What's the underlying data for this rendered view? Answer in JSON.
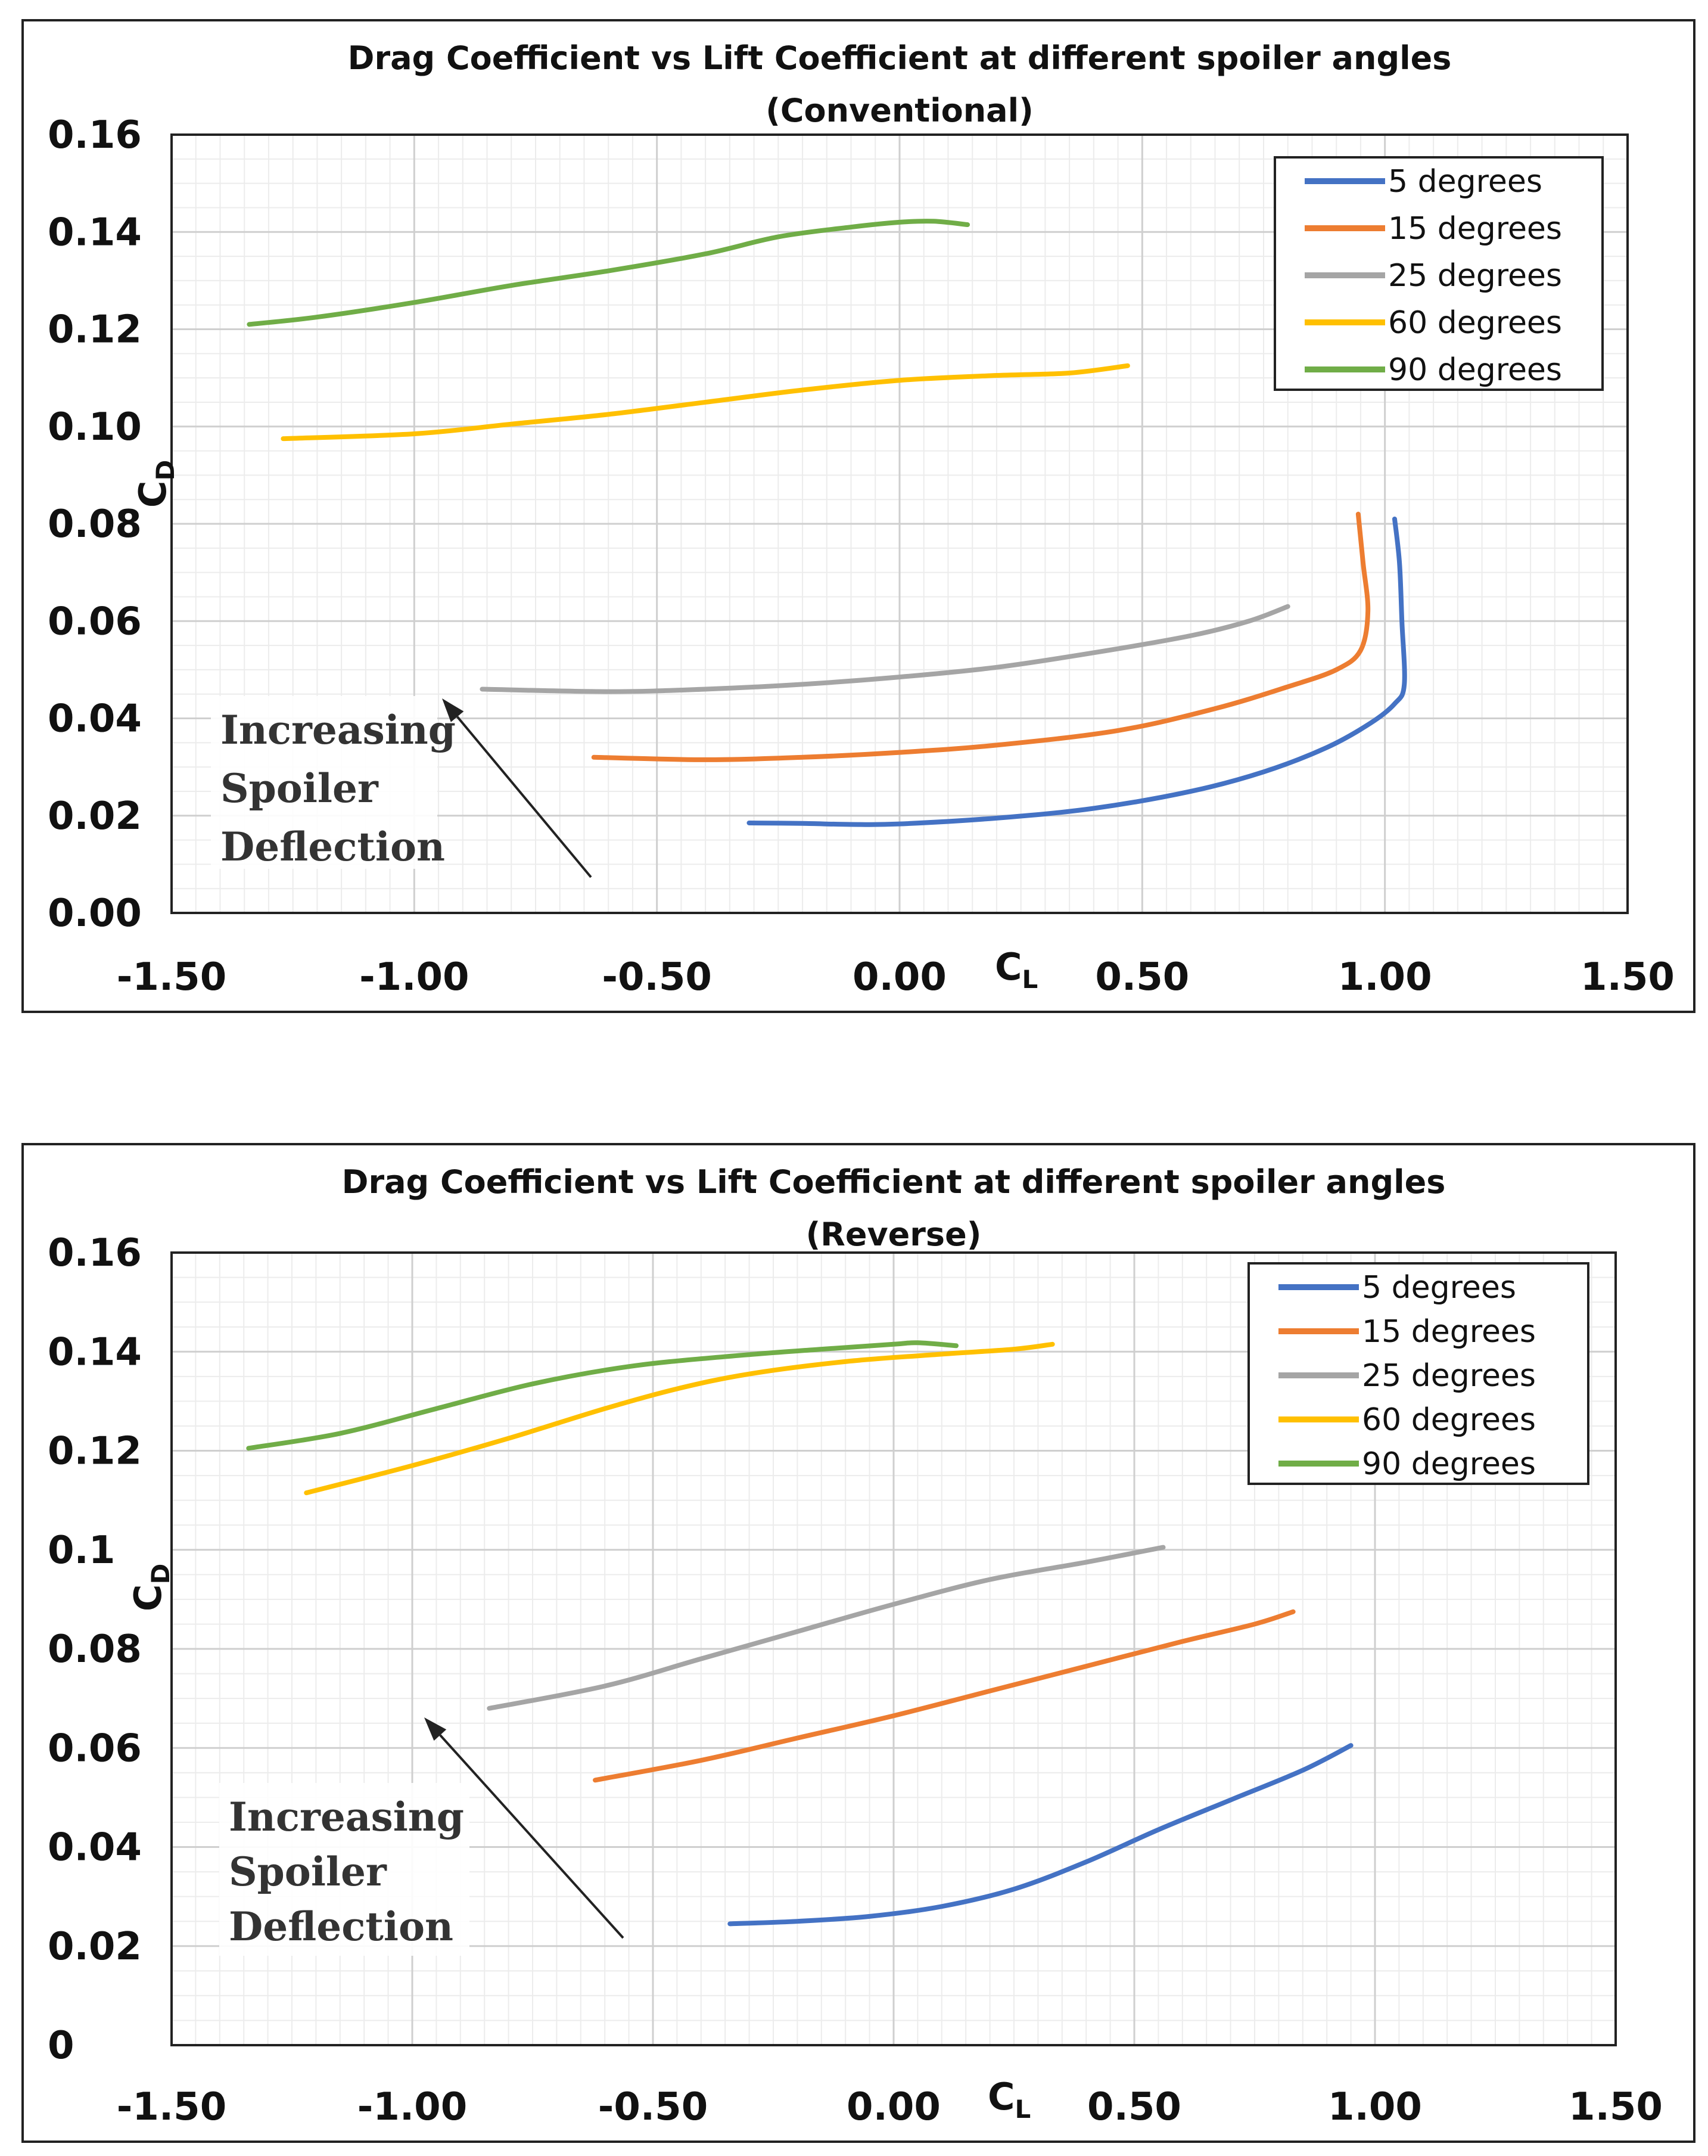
{
  "chart_data": [
    {
      "type": "line",
      "title": "Drag Coefficient vs Lift Coefficient at different spoiler angles",
      "subtitle": "(Conventional)",
      "xlabel": "C",
      "xlabel_sub": "L",
      "ylabel": "C",
      "ylabel_sub": "D",
      "xlim": [
        -1.5,
        1.5
      ],
      "ylim": [
        0,
        0.16
      ],
      "xticks": [
        "-1.50",
        "-1.00",
        "-0.50",
        "0.00",
        "0.50",
        "1.00",
        "1.50"
      ],
      "yticks": [
        "0.00",
        "0.02",
        "0.04",
        "0.06",
        "0.08",
        "0.10",
        "0.12",
        "0.14",
        "0.16"
      ],
      "grid": true,
      "legend_position": "top-right",
      "annotation": [
        "Increasing",
        "Spoiler",
        "Deflection"
      ],
      "series": [
        {
          "name": "5 degrees",
          "color": "#4472C4",
          "x": [
            -0.31,
            -0.2,
            -0.1,
            0.0,
            0.2,
            0.4,
            0.6,
            0.75,
            0.88,
            0.97,
            1.02,
            1.04,
            1.035,
            1.03,
            1.02
          ],
          "y": [
            0.0185,
            0.0184,
            0.0182,
            0.0183,
            0.0195,
            0.0215,
            0.025,
            0.029,
            0.034,
            0.039,
            0.043,
            0.047,
            0.06,
            0.072,
            0.081
          ]
        },
        {
          "name": "15 degrees",
          "color": "#ED7D31",
          "x": [
            -0.63,
            -0.4,
            -0.2,
            0.0,
            0.2,
            0.45,
            0.65,
            0.8,
            0.9,
            0.95,
            0.965,
            0.955,
            0.945
          ],
          "y": [
            0.032,
            0.0315,
            0.032,
            0.033,
            0.0345,
            0.0375,
            0.042,
            0.0465,
            0.05,
            0.054,
            0.062,
            0.072,
            0.082
          ]
        },
        {
          "name": "25 degrees",
          "color": "#A5A5A5",
          "x": [
            -0.86,
            -0.6,
            -0.4,
            -0.2,
            0.0,
            0.2,
            0.4,
            0.6,
            0.72,
            0.8
          ],
          "y": [
            0.046,
            0.0455,
            0.046,
            0.047,
            0.0485,
            0.0505,
            0.0535,
            0.057,
            0.06,
            0.063
          ]
        },
        {
          "name": "60 degrees",
          "color": "#FFC000",
          "x": [
            -1.27,
            -1.0,
            -0.8,
            -0.6,
            -0.4,
            -0.2,
            0.0,
            0.2,
            0.35,
            0.47
          ],
          "y": [
            0.0975,
            0.0985,
            0.1005,
            0.1025,
            0.105,
            0.1075,
            0.1095,
            0.1105,
            0.111,
            0.1125
          ]
        },
        {
          "name": "90 degrees",
          "color": "#70AD47",
          "x": [
            -1.34,
            -1.2,
            -1.0,
            -0.8,
            -0.6,
            -0.4,
            -0.25,
            -0.1,
            0.0,
            0.07,
            0.14
          ],
          "y": [
            0.121,
            0.1225,
            0.1255,
            0.129,
            0.132,
            0.1355,
            0.139,
            0.141,
            0.142,
            0.1422,
            0.1415
          ]
        }
      ]
    },
    {
      "type": "line",
      "title": "Drag Coefficient vs Lift Coefficient at different spoiler angles",
      "subtitle": "(Reverse)",
      "xlabel": "C",
      "xlabel_sub": "L",
      "ylabel": "C",
      "ylabel_sub": "D",
      "xlim": [
        -1.5,
        1.5
      ],
      "ylim": [
        0,
        0.16
      ],
      "xticks": [
        "-1.50",
        "-1.00",
        "-0.50",
        "0.00",
        "0.50",
        "1.00",
        "1.50"
      ],
      "yticks": [
        "0",
        "0.02",
        "0.04",
        "0.06",
        "0.08",
        "0.1",
        "0.12",
        "0.14",
        "0.16"
      ],
      "grid": true,
      "legend_position": "top-right",
      "annotation": [
        "Increasing",
        "Spoiler",
        "Deflection"
      ],
      "series": [
        {
          "name": "5 degrees",
          "color": "#4472C4",
          "x": [
            -0.34,
            -0.2,
            -0.05,
            0.1,
            0.25,
            0.4,
            0.55,
            0.7,
            0.85,
            0.95
          ],
          "y": [
            0.0245,
            0.025,
            0.026,
            0.028,
            0.0315,
            0.037,
            0.0435,
            0.0495,
            0.0555,
            0.0605
          ]
        },
        {
          "name": "15 degrees",
          "color": "#ED7D31",
          "x": [
            -0.62,
            -0.4,
            -0.2,
            0.0,
            0.2,
            0.4,
            0.6,
            0.75,
            0.83
          ],
          "y": [
            0.0535,
            0.0575,
            0.062,
            0.0665,
            0.0715,
            0.0765,
            0.0815,
            0.085,
            0.0875
          ]
        },
        {
          "name": "25 degrees",
          "color": "#A5A5A5",
          "x": [
            -0.84,
            -0.6,
            -0.4,
            -0.2,
            0.0,
            0.2,
            0.4,
            0.56
          ],
          "y": [
            0.068,
            0.0725,
            0.078,
            0.0835,
            0.089,
            0.094,
            0.0975,
            0.1005
          ]
        },
        {
          "name": "60 degrees",
          "color": "#FFC000",
          "x": [
            -1.22,
            -1.0,
            -0.8,
            -0.6,
            -0.45,
            -0.3,
            -0.1,
            0.1,
            0.25,
            0.33
          ],
          "y": [
            0.1115,
            0.117,
            0.1225,
            0.1285,
            0.1325,
            0.1355,
            0.138,
            0.1395,
            0.1405,
            0.1415
          ]
        },
        {
          "name": "90 degrees",
          "color": "#70AD47",
          "x": [
            -1.34,
            -1.15,
            -0.95,
            -0.75,
            -0.55,
            -0.35,
            -0.15,
            0.0,
            0.05,
            0.13
          ],
          "y": [
            0.1205,
            0.1235,
            0.1285,
            0.1335,
            0.137,
            0.139,
            0.1405,
            0.1415,
            0.1418,
            0.1412
          ]
        }
      ]
    }
  ]
}
